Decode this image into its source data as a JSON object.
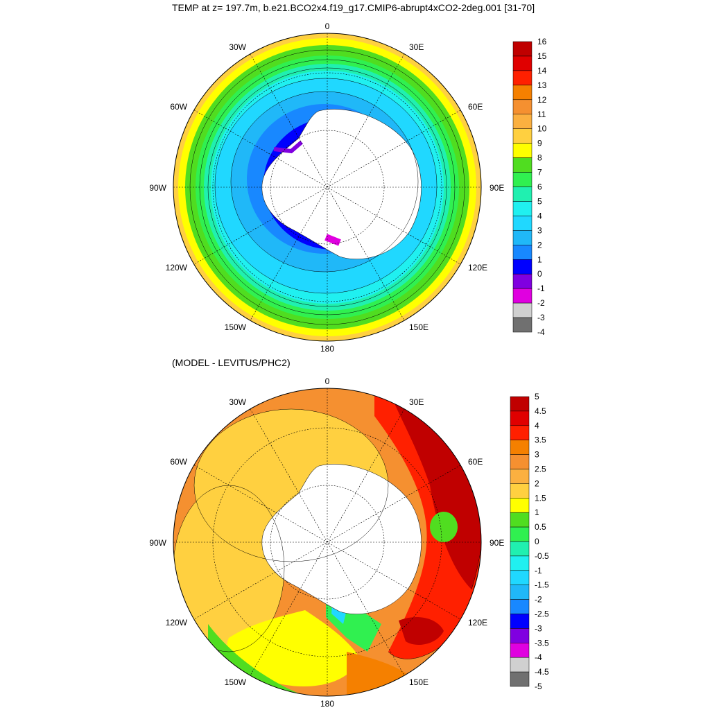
{
  "panels": [
    {
      "title": "TEMP at z= 197.7m, b.e21.BCO2x4.f19_g17.CMIP6-abrupt4xCO2-2deg.001 [31-70]",
      "lon_labels": [
        "0",
        "30E",
        "60E",
        "90E",
        "120E",
        "150E",
        "180",
        "150W",
        "120W",
        "90W",
        "60W",
        "30W"
      ],
      "colorbar": {
        "labels": [
          "16",
          "15",
          "14",
          "13",
          "12",
          "11",
          "10",
          "9",
          "8",
          "7",
          "6",
          "5",
          "4",
          "3",
          "2",
          "1",
          "0",
          "-1",
          "-2",
          "-3",
          "-4"
        ],
        "colors": [
          "#c00000",
          "#e00000",
          "#ff2000",
          "#f58000",
          "#f59030",
          "#fbb040",
          "#ffd040",
          "#ffff00",
          "#50dd20",
          "#30f050",
          "#20f0b0",
          "#20f0f0",
          "#20d8ff",
          "#20b8f8",
          "#1888ff",
          "#0000ff",
          "#8000e0",
          "#e000e0",
          "#d0d0d0",
          "#707070"
        ]
      }
    },
    {
      "title": "(MODEL - LEVITUS/PHC2)",
      "lon_labels": [
        "0",
        "30E",
        "60E",
        "90E",
        "120E",
        "150E",
        "180",
        "150W",
        "120W",
        "90W",
        "60W",
        "30W"
      ],
      "colorbar": {
        "labels": [
          "5",
          "4.5",
          "4",
          "3.5",
          "3",
          "2.5",
          "2",
          "1.5",
          "1",
          "0.5",
          "0",
          "-0.5",
          "-1",
          "-1.5",
          "-2",
          "-2.5",
          "-3",
          "-3.5",
          "-4",
          "-4.5",
          "-5"
        ],
        "colors": [
          "#c00000",
          "#e00000",
          "#ff2000",
          "#f58000",
          "#f59030",
          "#fbb040",
          "#ffd040",
          "#ffff00",
          "#50dd20",
          "#30f050",
          "#20f0b0",
          "#20f0f0",
          "#20d8ff",
          "#20b8f8",
          "#1888ff",
          "#0000ff",
          "#8000e0",
          "#e000e0",
          "#d0d0d0",
          "#707070"
        ]
      }
    }
  ]
}
